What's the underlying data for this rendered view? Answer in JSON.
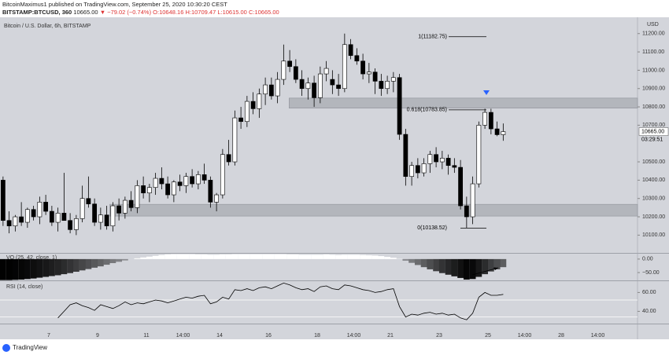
{
  "header": {
    "author_line": "BitcoinMaximus1 published on TradingView.com, September 25, 2020 10:30:20 CEST",
    "symbol": "BITSTAMP:BTCUSD, 360",
    "last": "10665.00",
    "change": "▼ −79.02 (−0.74%)",
    "ohlc": "O:10648.16 H:10709.47 L:10615.00 C:10665.00"
  },
  "chart_data": [
    {
      "type": "candlestick",
      "title": "Bitcoin / U.S. Dollar, 6h, BITSTAMP",
      "currency": "USD",
      "up_color": "#ffffff",
      "down_color": "#000000",
      "x": [
        5.125,
        5.375,
        5.625,
        5.875,
        6.125,
        6.375,
        6.625,
        6.875,
        7.125,
        7.375,
        7.625,
        7.875,
        8.125,
        8.375,
        8.625,
        8.875,
        9.125,
        9.375,
        9.625,
        9.875,
        10.125,
        10.375,
        10.625,
        10.875,
        11.125,
        11.375,
        11.625,
        11.875,
        12.125,
        12.375,
        12.625,
        12.875,
        13.125,
        13.375,
        13.625,
        13.875,
        14.125,
        14.375,
        14.625,
        14.875,
        15.125,
        15.375,
        15.625,
        15.875,
        16.125,
        16.375,
        16.625,
        16.875,
        17.125,
        17.375,
        17.625,
        17.875,
        18.125,
        18.375,
        18.625,
        18.875,
        19.125,
        19.375,
        19.625,
        19.875,
        20.125,
        20.375,
        20.625,
        20.875,
        21.125,
        21.375,
        21.625,
        21.875,
        22.125,
        22.375,
        22.625,
        22.875,
        23.125,
        23.375,
        23.625,
        23.875,
        24.125,
        24.375,
        24.625,
        24.875,
        25.125,
        25.375,
        25.625
      ],
      "open": [
        10400,
        10180,
        10150,
        10200,
        10170,
        10240,
        10200,
        10280,
        10230,
        10170,
        10220,
        10180,
        10130,
        10190,
        10300,
        10270,
        10170,
        10210,
        10150,
        10260,
        10220,
        10290,
        10250,
        10370,
        10330,
        10360,
        10410,
        10380,
        10320,
        10390,
        10370,
        10420,
        10380,
        10430,
        10400,
        10280,
        10320,
        10540,
        10500,
        10740,
        10720,
        10830,
        10790,
        10870,
        10920,
        10860,
        10950,
        11050,
        11020,
        10950,
        10900,
        10930,
        10850,
        10980,
        10950,
        10920,
        10900,
        11140,
        11080,
        11050,
        10980,
        10990,
        10940,
        10900,
        10940,
        10960,
        10650,
        10420,
        10480,
        10440,
        10490,
        10540,
        10500,
        10520,
        10480,
        10470,
        10260,
        10200,
        10380,
        10700,
        10770,
        10680,
        10648.16
      ],
      "high": [
        10420,
        10230,
        10210,
        10280,
        10250,
        10260,
        10310,
        10320,
        10260,
        10250,
        10440,
        10220,
        10210,
        10370,
        10420,
        10300,
        10250,
        10260,
        10280,
        10300,
        10310,
        10340,
        10400,
        10420,
        10380,
        10440,
        10470,
        10420,
        10400,
        10430,
        10440,
        10460,
        10450,
        10490,
        10420,
        10330,
        10570,
        10620,
        10780,
        10800,
        10860,
        10880,
        10900,
        10960,
        10960,
        10990,
        11140,
        11110,
        11060,
        11000,
        10960,
        10970,
        11020,
        11050,
        11000,
        10980,
        11200,
        11170,
        11120,
        11090,
        11040,
        11010,
        10980,
        10970,
        10990,
        10980,
        10680,
        10500,
        10520,
        10520,
        10560,
        10580,
        10560,
        10540,
        10520,
        10510,
        10310,
        10420,
        10720,
        10790,
        10790,
        10720,
        10709.47
      ],
      "low": [
        10150,
        10110,
        10120,
        10150,
        10140,
        10180,
        10160,
        10210,
        10150,
        10120,
        10190,
        10110,
        10100,
        10170,
        10250,
        10150,
        10130,
        10130,
        10120,
        10180,
        10190,
        10230,
        10220,
        10300,
        10280,
        10320,
        10350,
        10300,
        10280,
        10340,
        10330,
        10360,
        10350,
        10380,
        10250,
        10230,
        10300,
        10480,
        10480,
        10680,
        10690,
        10760,
        10740,
        10810,
        10840,
        10820,
        10920,
        10990,
        10930,
        10860,
        10840,
        10800,
        10820,
        10940,
        10870,
        10860,
        10880,
        11060,
        11030,
        10950,
        10930,
        10870,
        10860,
        10870,
        10880,
        10620,
        10370,
        10370,
        10410,
        10420,
        10440,
        10470,
        10460,
        10430,
        10440,
        10240,
        10138,
        10160,
        10360,
        10680,
        10650,
        10640,
        10615
      ],
      "close": [
        10180,
        10150,
        10200,
        10170,
        10240,
        10200,
        10280,
        10230,
        10170,
        10220,
        10180,
        10130,
        10190,
        10300,
        10270,
        10170,
        10210,
        10150,
        10260,
        10220,
        10290,
        10250,
        10370,
        10330,
        10360,
        10410,
        10380,
        10320,
        10390,
        10370,
        10420,
        10380,
        10430,
        10400,
        10280,
        10320,
        10540,
        10500,
        10740,
        10720,
        10830,
        10790,
        10870,
        10920,
        10860,
        10950,
        11050,
        11020,
        10950,
        10900,
        10930,
        10850,
        10980,
        11010,
        10920,
        10900,
        11140,
        11080,
        11050,
        10980,
        10990,
        10940,
        10900,
        10940,
        10960,
        10650,
        10420,
        10480,
        10440,
        10490,
        10540,
        10500,
        10520,
        10480,
        10470,
        10260,
        10200,
        10380,
        10700,
        10770,
        10680,
        10648.16,
        10665
      ],
      "xlim": [
        5,
        31.13
      ],
      "xticks": [
        {
          "value": 7,
          "label": "7"
        },
        {
          "value": 9,
          "label": "9"
        },
        {
          "value": 11,
          "label": "11"
        },
        {
          "value": 12.5,
          "label": "14:00"
        },
        {
          "value": 14,
          "label": "14"
        },
        {
          "value": 16,
          "label": "16"
        },
        {
          "value": 18,
          "label": "18"
        },
        {
          "value": 19.5,
          "label": "14:00"
        },
        {
          "value": 21,
          "label": "21"
        },
        {
          "value": 23,
          "label": "23"
        },
        {
          "value": 25,
          "label": "25"
        },
        {
          "value": 26.5,
          "label": "14:00"
        },
        {
          "value": 28,
          "label": "28"
        },
        {
          "value": 29.5,
          "label": "14:00"
        }
      ],
      "ylim": [
        10003,
        11289
      ],
      "yticks": [
        {
          "value": 11200,
          "label": "11200.00"
        },
        {
          "value": 11100,
          "label": "11100.00"
        },
        {
          "value": 11000,
          "label": "11000.00"
        },
        {
          "value": 10900,
          "label": "10900.00"
        },
        {
          "value": 10800,
          "label": "10800.00"
        },
        {
          "value": 10700,
          "label": "10700.00"
        },
        {
          "value": 10500,
          "label": "10500.00"
        },
        {
          "value": 10400,
          "label": "10400.00"
        },
        {
          "value": 10300,
          "label": "10300.00"
        },
        {
          "value": 10200,
          "label": "10200.00"
        },
        {
          "value": 10100,
          "label": "10100.00"
        }
      ],
      "zones": [
        {
          "from_x": 16.85,
          "low": 10793,
          "high": 10848
        },
        {
          "from_x": 9.5,
          "low": 10204,
          "high": 10268
        }
      ],
      "fib_levels": [
        {
          "label": "1(11182.75)",
          "value": 11182.75
        },
        {
          "label": "0.618(10783.85)",
          "value": 10783.85
        },
        {
          "label": "0(10138.52)",
          "value": 10138.52
        }
      ],
      "last_price_label": "10665.00",
      "countdown": "03:29:51"
    },
    {
      "type": "bar",
      "title": "VO (25, 42, close, 1)",
      "color": "#000000",
      "positive_color": "#ffffff",
      "values": [
        -78,
        -78,
        -77,
        -76,
        -74,
        -72,
        -69,
        -66,
        -63,
        -60,
        -56,
        -52,
        -47,
        -42,
        -37,
        -32,
        -27,
        -21,
        -15,
        -10,
        -5,
        0,
        3,
        6,
        9,
        12,
        15,
        17,
        18,
        18,
        18,
        18,
        17,
        17,
        16,
        16,
        17,
        17,
        18,
        18,
        18,
        18,
        18,
        18,
        18,
        18,
        18,
        17,
        17,
        16,
        16,
        16,
        16,
        17,
        16,
        15,
        16,
        16,
        16,
        15,
        14,
        13,
        11,
        8,
        5,
        1,
        -6,
        -14,
        -22,
        -30,
        -38,
        -45,
        -52,
        -58,
        -64,
        -70,
        -76,
        -74,
        -66,
        -56,
        -46,
        -38,
        -30
      ],
      "ylim": [
        -79,
        20
      ],
      "yticks": [
        {
          "value": 0,
          "label": "0.00"
        },
        {
          "value": -50,
          "label": "−50.00"
        }
      ]
    },
    {
      "type": "line",
      "title": "RSI (14, close)",
      "color": "#000000",
      "levels": [
        52,
        34
      ],
      "level_color": "#ffffff",
      "values": [
        null,
        null,
        null,
        null,
        null,
        null,
        null,
        null,
        null,
        33,
        40,
        47,
        49,
        46,
        44,
        41,
        47,
        45,
        43,
        46,
        50,
        47,
        49,
        48,
        50,
        52,
        51,
        49,
        51,
        53,
        55,
        54,
        56,
        57,
        48,
        50,
        55,
        53,
        63,
        62,
        64,
        62,
        65,
        66,
        64,
        67,
        70,
        68,
        65,
        63,
        64,
        61,
        66,
        67,
        64,
        63,
        68,
        67,
        65,
        63,
        62,
        60,
        61,
        63,
        64,
        45,
        34,
        37,
        36,
        38,
        39,
        37,
        38,
        36,
        37,
        33,
        31,
        38,
        55,
        60,
        57,
        57,
        58
      ],
      "ylim": [
        27,
        72
      ],
      "yticks": [
        {
          "value": 60,
          "label": "60.00"
        },
        {
          "value": 40,
          "label": "40.00"
        }
      ]
    }
  ],
  "footer": {
    "brand": "TradingView"
  }
}
